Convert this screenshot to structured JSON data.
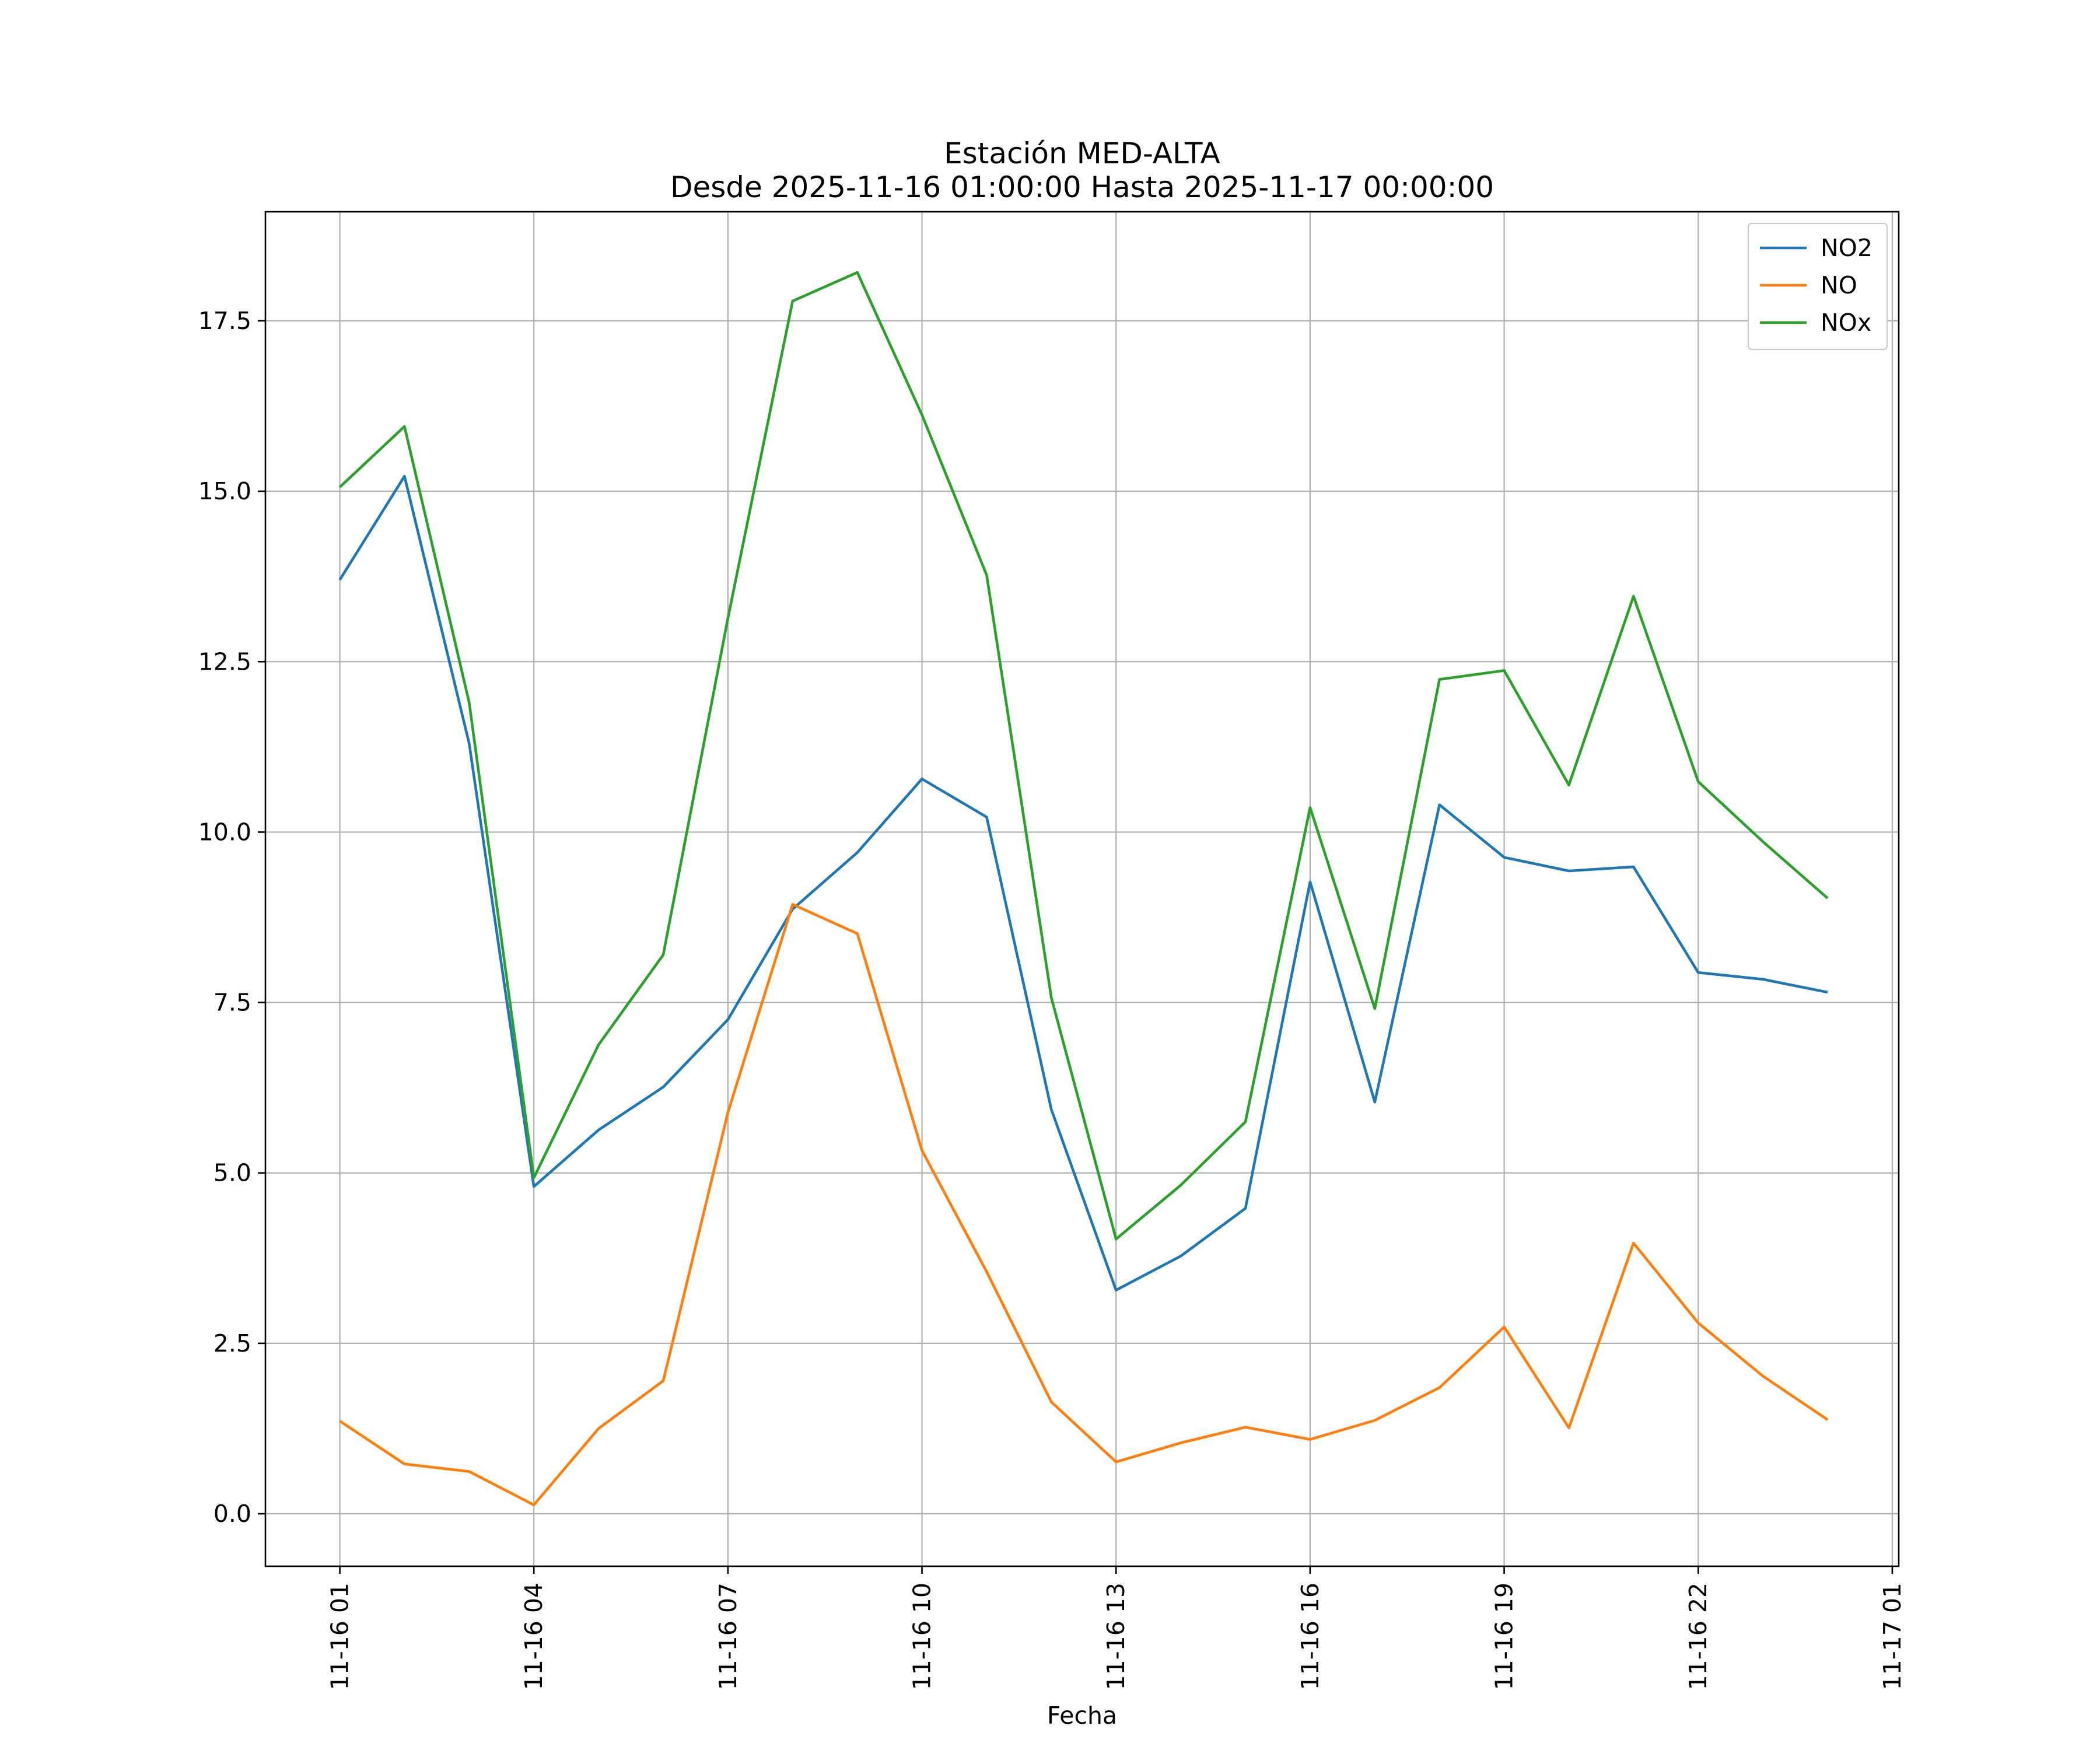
{
  "chart_data": {
    "type": "line",
    "title": "Estación MED-ALTA",
    "subtitle": "Desde 2025-11-16 01:00:00 Hasta 2025-11-17 00:00:00",
    "xlabel": "Fecha",
    "ylabel": "",
    "x": [
      "2025-11-16 01:00",
      "2025-11-16 02:00",
      "2025-11-16 03:00",
      "2025-11-16 04:00",
      "2025-11-16 05:00",
      "2025-11-16 06:00",
      "2025-11-16 07:00",
      "2025-11-16 08:00",
      "2025-11-16 09:00",
      "2025-11-16 10:00",
      "2025-11-16 11:00",
      "2025-11-16 12:00",
      "2025-11-16 13:00",
      "2025-11-16 14:00",
      "2025-11-16 15:00",
      "2025-11-16 16:00",
      "2025-11-16 17:00",
      "2025-11-16 18:00",
      "2025-11-16 19:00",
      "2025-11-16 20:00",
      "2025-11-16 21:00",
      "2025-11-16 22:00",
      "2025-11-16 23:00",
      "2025-11-17 00:00"
    ],
    "x_hours": [
      1,
      2,
      3,
      4,
      5,
      6,
      7,
      8,
      9,
      10,
      11,
      12,
      13,
      14,
      15,
      16,
      17,
      18,
      19,
      20,
      21,
      22,
      23,
      24
    ],
    "xlim_hours": [
      -0.15,
      25.1
    ],
    "xticks": [
      {
        "hour": 1,
        "label": "11-16 01"
      },
      {
        "hour": 4,
        "label": "11-16 04"
      },
      {
        "hour": 7,
        "label": "11-16 07"
      },
      {
        "hour": 10,
        "label": "11-16 10"
      },
      {
        "hour": 13,
        "label": "11-16 13"
      },
      {
        "hour": 16,
        "label": "11-16 16"
      },
      {
        "hour": 19,
        "label": "11-16 19"
      },
      {
        "hour": 22,
        "label": "11-16 22"
      },
      {
        "hour": 25,
        "label": "11-17 01"
      }
    ],
    "ylim": [
      -0.77,
      19.1
    ],
    "yticks": [
      {
        "value": 0.0,
        "label": "0.0"
      },
      {
        "value": 2.5,
        "label": "2.5"
      },
      {
        "value": 5.0,
        "label": "5.0"
      },
      {
        "value": 7.5,
        "label": "7.5"
      },
      {
        "value": 10.0,
        "label": "10.0"
      },
      {
        "value": 12.5,
        "label": "12.5"
      },
      {
        "value": 15.0,
        "label": "15.0"
      },
      {
        "value": 17.5,
        "label": "17.5"
      }
    ],
    "grid": true,
    "legend_position": "top-right",
    "series": [
      {
        "name": "NO2",
        "color": "#1f77b4",
        "values": [
          13.7,
          15.22,
          11.3,
          4.8,
          5.63,
          6.26,
          7.25,
          8.87,
          9.7,
          10.78,
          10.22,
          5.93,
          3.28,
          3.78,
          4.48,
          9.27,
          6.04,
          10.4,
          9.63,
          9.43,
          9.49,
          7.94,
          7.84,
          7.65
        ]
      },
      {
        "name": "NO",
        "color": "#ff7f0e",
        "values": [
          1.36,
          0.73,
          0.62,
          0.13,
          1.25,
          1.95,
          5.89,
          8.94,
          8.51,
          5.33,
          3.55,
          1.64,
          0.76,
          1.04,
          1.27,
          1.09,
          1.37,
          1.85,
          2.74,
          1.26,
          3.97,
          2.8,
          2.02,
          1.38
        ]
      },
      {
        "name": "NOx",
        "color": "#2ca02c",
        "values": [
          15.06,
          15.95,
          11.9,
          4.93,
          6.88,
          8.2,
          13.14,
          17.79,
          18.21,
          16.12,
          13.77,
          7.57,
          4.03,
          4.82,
          5.75,
          10.36,
          7.41,
          12.24,
          12.37,
          10.69,
          13.46,
          10.74,
          9.86,
          9.03
        ]
      }
    ]
  }
}
